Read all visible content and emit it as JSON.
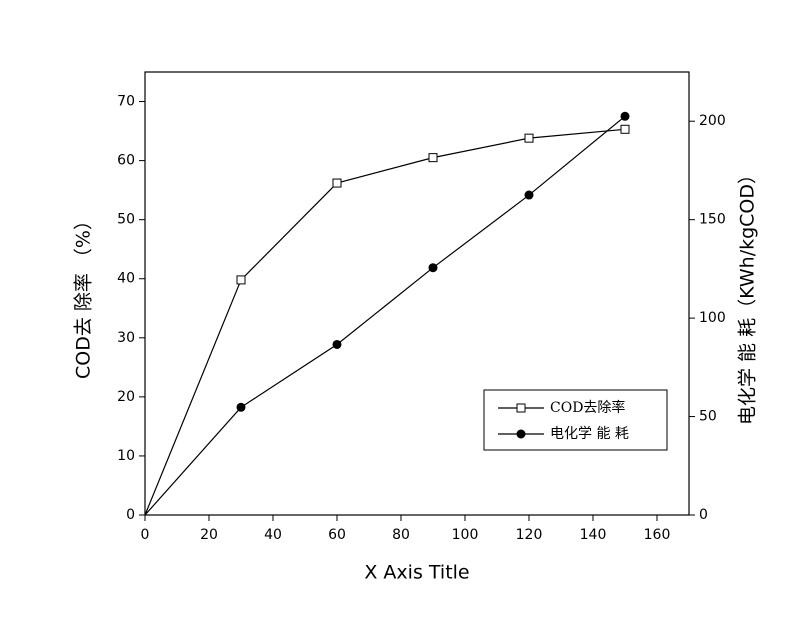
{
  "chart_data": {
    "type": "line",
    "x_label": "X Axis Title",
    "y_label": "COD去 除率 （%）",
    "y2_label": "电化学 能 耗（KWh/kgCOD）",
    "x": [
      0,
      30,
      60,
      90,
      120,
      150
    ],
    "xlim": [
      0,
      170
    ],
    "xticks": [
      0,
      20,
      40,
      60,
      80,
      100,
      120,
      140,
      160
    ],
    "ylim": [
      0,
      75
    ],
    "yticks": [
      0,
      10,
      20,
      30,
      40,
      50,
      60,
      70
    ],
    "y2lim": [
      0,
      225
    ],
    "y2ticks": [
      0,
      50,
      100,
      150,
      200
    ],
    "legend": "lower-right",
    "series": [
      {
        "name": "COD去除率",
        "color": "#000000",
        "marker": "open-square",
        "values": [
          0,
          39.8,
          56.2,
          60.5,
          63.8,
          65.3
        ]
      },
      {
        "name": "电化学 能 耗",
        "color": "#000000",
        "marker": "filled-circle",
        "axis": "y2",
        "values": [
          0,
          54.7,
          86.6,
          125.6,
          162.5,
          202.5
        ]
      }
    ]
  }
}
